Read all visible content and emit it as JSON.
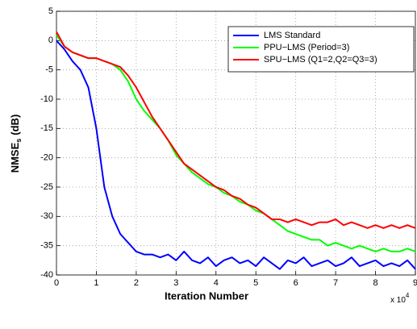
{
  "chart_data": {
    "type": "line",
    "xlabel": "Iteration Number",
    "ylabel": "NMSE",
    "ylabel_sub": "s",
    "ylabel_unit": "(dB)",
    "x_multiplier": "x 10",
    "x_multiplier_exp": "4",
    "x": [
      0,
      0.2,
      0.4,
      0.6,
      0.8,
      1.0,
      1.2,
      1.4,
      1.6,
      1.8,
      2.0,
      2.2,
      2.4,
      2.6,
      2.8,
      3.0,
      3.2,
      3.4,
      3.6,
      3.8,
      4.0,
      4.2,
      4.4,
      4.6,
      4.8,
      5.0,
      5.2,
      5.4,
      5.6,
      5.8,
      6.0,
      6.2,
      6.4,
      6.6,
      6.8,
      7.0,
      7.2,
      7.4,
      7.6,
      7.8,
      8.0,
      8.2,
      8.4,
      8.6,
      8.8,
      9.0
    ],
    "series": [
      {
        "name": "LMS Standard",
        "color": "#0000ff",
        "values": [
          0,
          -1.5,
          -3.5,
          -5,
          -8,
          -15,
          -25,
          -30,
          -33,
          -34.5,
          -36,
          -36.5,
          -36.5,
          -37,
          -36.5,
          -37.5,
          -36,
          -37.5,
          -38,
          -37,
          -38.5,
          -37.5,
          -37,
          -38,
          -37.5,
          -38.5,
          -37,
          -38,
          -39,
          -37.5,
          -38,
          -37,
          -38.5,
          -38,
          -37.5,
          -38.5,
          -38,
          -37,
          -38.5,
          -38,
          -37.5,
          -38.5,
          -38,
          -38.5,
          -37.5,
          -39
        ]
      },
      {
        "name": "PPU−LMS (Period=3)",
        "color": "#00ff00",
        "values": [
          1,
          -1,
          -2,
          -2.5,
          -3,
          -3,
          -3.5,
          -4,
          -5,
          -7,
          -10,
          -12,
          -13.5,
          -15,
          -17,
          -19.5,
          -21,
          -22.5,
          -23.5,
          -24.5,
          -25,
          -26,
          -26.5,
          -27.5,
          -28,
          -29,
          -29.5,
          -30.5,
          -31.5,
          -32.5,
          -33,
          -33.5,
          -34,
          -34,
          -35,
          -34.5,
          -35,
          -35.5,
          -35,
          -35.5,
          -36,
          -35.5,
          -36,
          -36,
          -35.5,
          -36
        ]
      },
      {
        "name": "SPU−LMS (Q1=2,Q2=Q3=3)",
        "color": "#ff0000",
        "values": [
          1.5,
          -1,
          -2,
          -2.5,
          -3,
          -3,
          -3.5,
          -4,
          -4.5,
          -6,
          -8,
          -10.5,
          -13,
          -15,
          -17,
          -19,
          -21,
          -22,
          -23,
          -24,
          -25,
          -25.5,
          -26.5,
          -27,
          -28,
          -28.5,
          -29.5,
          -30.5,
          -30.5,
          -31,
          -30.5,
          -31,
          -31.5,
          -31,
          -31,
          -30.5,
          -31.5,
          -31,
          -31.5,
          -32,
          -31.5,
          -32,
          -31.5,
          -32,
          -31.5,
          -32
        ]
      }
    ],
    "xlim": [
      0,
      9
    ],
    "xticks": [
      0,
      1,
      2,
      3,
      4,
      5,
      6,
      7,
      8,
      9
    ],
    "ylim": [
      -40,
      5
    ],
    "yticks": [
      -40,
      -35,
      -30,
      -25,
      -20,
      -15,
      -10,
      -5,
      0,
      5
    ],
    "grid": true,
    "legend": "upper right"
  }
}
